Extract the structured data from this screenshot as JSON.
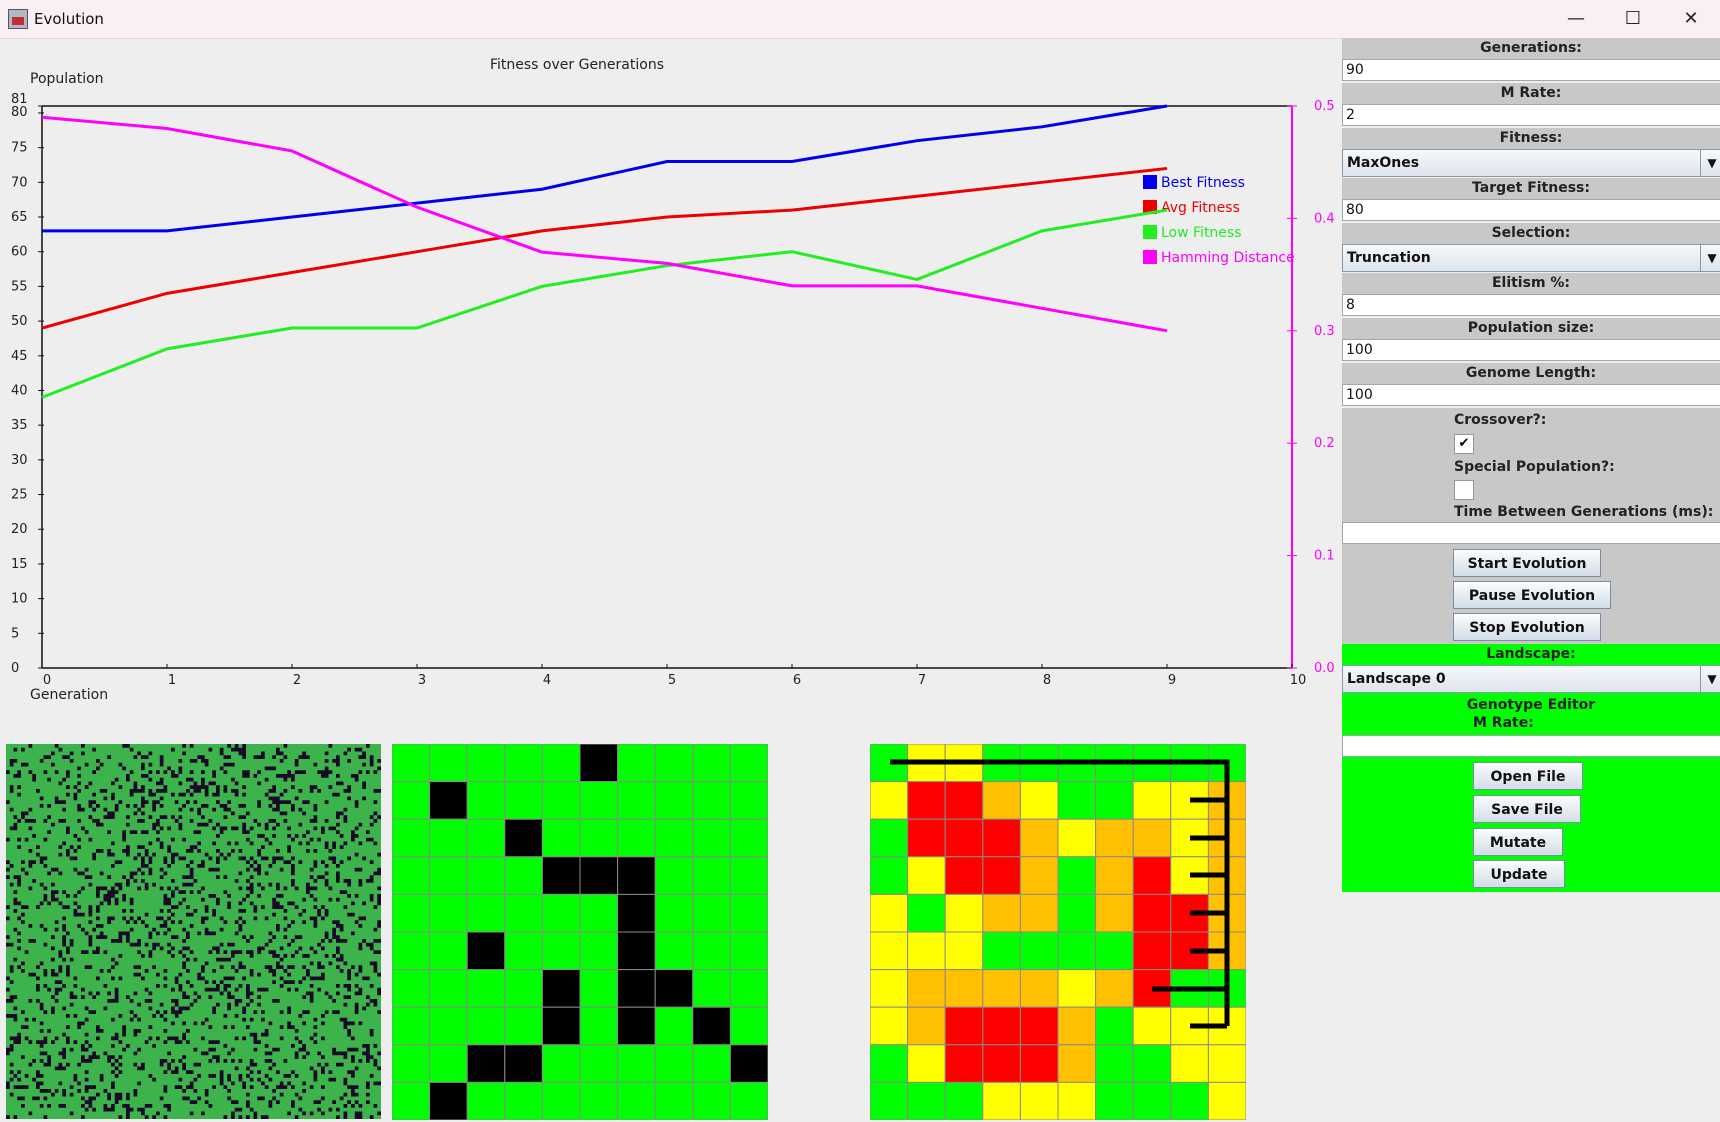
{
  "window": {
    "title": "Evolution",
    "minimize": "—",
    "maximize": "☐",
    "close": "✕"
  },
  "chart_data": {
    "type": "line",
    "title": "Fitness over Generations",
    "ylabel": "Population",
    "xlabel": "Generation",
    "x": [
      0,
      1,
      2,
      3,
      4,
      5,
      6,
      7,
      8,
      9
    ],
    "xlim": [
      0,
      10
    ],
    "xticks": [
      "0",
      "1",
      "2",
      "3",
      "4",
      "5",
      "6",
      "7",
      "8",
      "9",
      "10"
    ],
    "ylim": [
      0,
      81
    ],
    "yticks": [
      "0",
      "5",
      "10",
      "15",
      "20",
      "25",
      "30",
      "35",
      "40",
      "45",
      "50",
      "55",
      "60",
      "65",
      "70",
      "75",
      "80",
      "81"
    ],
    "y2lim": [
      0,
      0.5
    ],
    "y2ticks": [
      "0.0",
      "0.1",
      "0.2",
      "0.3",
      "0.4",
      "0.5"
    ],
    "legend_position": "top-right",
    "series": [
      {
        "name": "Best Fitness",
        "color": "#0000ee",
        "axis": "left",
        "values": [
          63,
          63,
          65,
          67,
          69,
          73,
          73,
          76,
          78,
          81
        ]
      },
      {
        "name": "Avg Fitness",
        "color": "#ee0000",
        "axis": "left",
        "values": [
          49,
          54,
          57,
          60,
          63,
          65,
          66,
          68,
          70,
          72
        ]
      },
      {
        "name": "Low Fitness",
        "color": "#22ee22",
        "axis": "left",
        "values": [
          39,
          46,
          49,
          49,
          55,
          58,
          60,
          56,
          63,
          66
        ]
      },
      {
        "name": "Hamming Distance",
        "color": "#ff00ff",
        "axis": "right",
        "values": [
          0.49,
          0.48,
          0.46,
          0.41,
          0.37,
          0.36,
          0.34,
          0.34,
          0.32,
          0.3
        ]
      }
    ]
  },
  "genome_grid": {
    "rows": 10,
    "cols": 10,
    "cells": [
      "0000010000",
      "0100000000",
      "0001000000",
      "0000111000",
      "0000001000",
      "0010001000",
      "0000101100",
      "0000101010",
      "0011000001",
      "0100000000"
    ]
  },
  "landscape_grid": {
    "rows": 10,
    "cols": 10,
    "cells": [
      "GYYGGGGGGG",
      "YRROYGGYYO",
      "GRRROYOOYO",
      "GYRROGORYO",
      "YGYOOGORRO",
      "YYYGGGGRRO",
      "YOOOOYORGG",
      "YORRROGYYY",
      "GYRRROGGYY",
      "GGGYYYGGGY"
    ]
  },
  "colors": {
    "green": "#00ff00",
    "yellow": "#ffff00",
    "orange": "#ffc000",
    "red": "#ff0000",
    "black": "#000000"
  },
  "sidebar": {
    "generations_label": "Generations:",
    "generations_value": "90",
    "mrate_label": "M Rate:",
    "mrate_value": "2",
    "fitness_label": "Fitness:",
    "fitness_value": "MaxOnes",
    "target_label": "Target Fitness:",
    "target_value": "80",
    "selection_label": "Selection:",
    "selection_value": "Truncation",
    "elitism_label": "Elitism %:",
    "elitism_value": "8",
    "popsize_label": "Population size:",
    "popsize_value": "100",
    "genome_label": "Genome Length:",
    "genome_value": "100",
    "crossover_label": "Crossover?:",
    "crossover_checked": "✔",
    "special_label": "Special Population?:",
    "time_label": "Time Between Generations (ms):",
    "time_value": "",
    "start_label": "Start Evolution",
    "pause_label": "Pause Evolution",
    "stop_label": "Stop Evolution",
    "landscape_label": "Landscape:",
    "landscape_value": "Landscape 0",
    "editor_label": "Genotype Editor",
    "editor_mrate_label": "M Rate:",
    "editor_mrate_value": "",
    "open_label": "Open File",
    "save_label": "Save File",
    "mutate_label": "Mutate",
    "update_label": "Update",
    "dropdown_arrow": "▼"
  }
}
